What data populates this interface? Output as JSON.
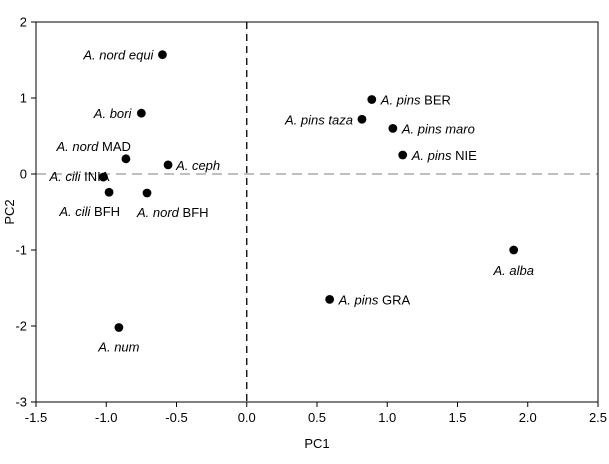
{
  "chart_data": {
    "type": "scatter",
    "title": "",
    "xlabel": "PC1",
    "ylabel": "PC2",
    "xlim": [
      -1.5,
      2.5
    ],
    "ylim": [
      -3,
      2
    ],
    "xticks": [
      -1.5,
      -1.0,
      -0.5,
      0.0,
      0.5,
      1.0,
      1.5,
      2.0,
      2.5
    ],
    "xtick_labels": [
      "-1.5",
      "-1.0",
      "-0.5",
      "0.0",
      "0.5",
      "1.0",
      "1.5",
      "2.0",
      "2.5"
    ],
    "yticks": [
      -3,
      -2,
      -1,
      0,
      1,
      2
    ],
    "ytick_labels": [
      "-3",
      "-2",
      "-1",
      "0",
      "1",
      "2"
    ],
    "grid": false,
    "reference_lines": [
      {
        "orientation": "vertical",
        "value": 0.0,
        "style": "dashed",
        "color": "#000000"
      },
      {
        "orientation": "horizontal",
        "value": 0.0,
        "style": "dashed",
        "color": "#999999"
      }
    ],
    "marker_color": "#000000",
    "points": [
      {
        "italic": "A. nord equi",
        "plain": "",
        "x": -0.6,
        "y": 1.57
      },
      {
        "italic": "A. bori",
        "plain": "",
        "x": -0.75,
        "y": 0.8
      },
      {
        "italic": "A. nord",
        "plain": " MAD",
        "x": -0.86,
        "y": 0.2
      },
      {
        "italic": "A. cili",
        "plain": " INIA",
        "x": -1.02,
        "y": -0.04
      },
      {
        "italic": "A. ceph",
        "plain": "",
        "x": -0.56,
        "y": 0.12
      },
      {
        "italic": "A. cili",
        "plain": " BFH",
        "x": -0.98,
        "y": -0.24
      },
      {
        "italic": "A. nord",
        "plain": " BFH",
        "x": -0.71,
        "y": -0.25
      },
      {
        "italic": "A. num",
        "plain": "",
        "x": -0.91,
        "y": -2.02
      },
      {
        "italic": "A. pins",
        "plain": " BER",
        "x": 0.89,
        "y": 0.98
      },
      {
        "italic": "A. pins taza",
        "plain": "",
        "x": 0.82,
        "y": 0.72
      },
      {
        "italic": "A. pins maro",
        "plain": "",
        "x": 1.04,
        "y": 0.6
      },
      {
        "italic": "A. pins",
        "plain": " NIE",
        "x": 1.11,
        "y": 0.25
      },
      {
        "italic": "A. alba",
        "plain": "",
        "x": 1.9,
        "y": -1.0
      },
      {
        "italic": "A. pins",
        "plain": " GRA",
        "x": 0.59,
        "y": -1.65
      }
    ]
  }
}
